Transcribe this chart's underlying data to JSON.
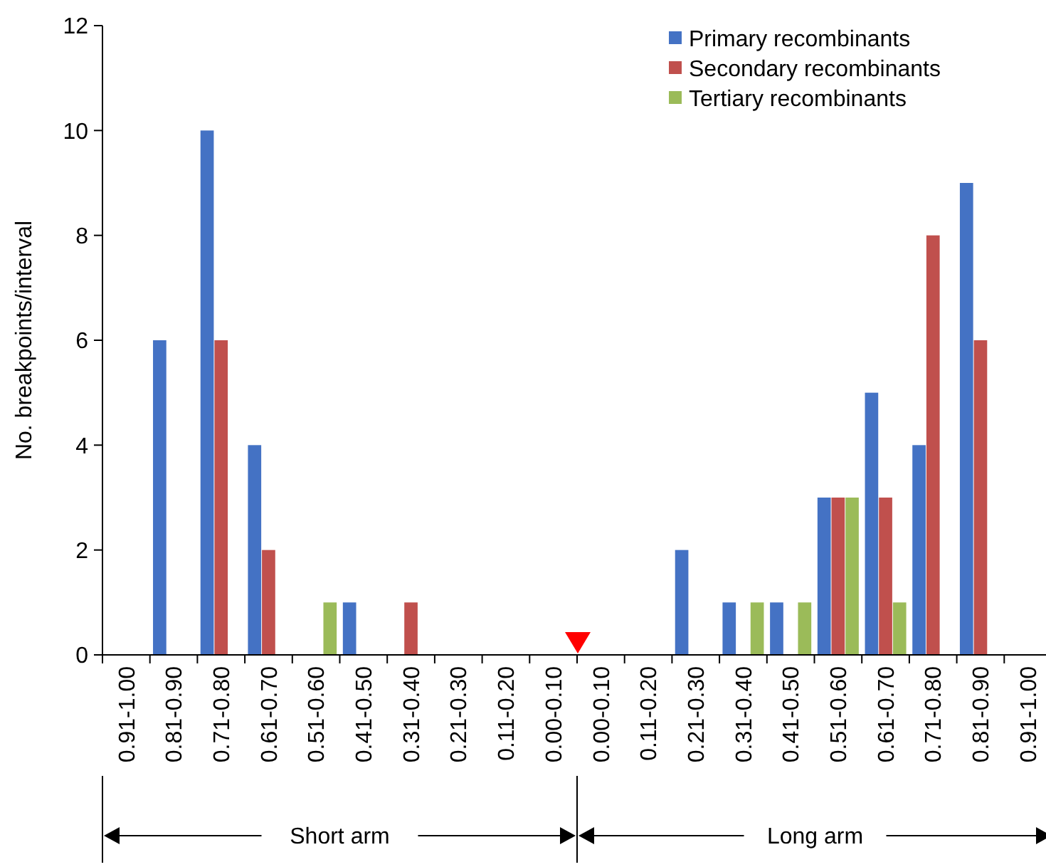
{
  "chart_data": {
    "type": "bar",
    "ylabel": "No. breakpoints/interval",
    "categories": [
      "0.91-1.00",
      "0.81-0.90",
      "0.71-0.80",
      "0.61-0.70",
      "0.51-0.60",
      "0.41-0.50",
      "0.31-0.40",
      "0.21-0.30",
      "0.11-0.20",
      "0.00-0.10",
      "0.00-0.10",
      "0.11-0.20",
      "0.21-0.30",
      "0.31-0.40",
      "0.41-0.50",
      "0.51-0.60",
      "0.61-0.70",
      "0.71-0.80",
      "0.81-0.90",
      "0.91-1.00"
    ],
    "series": [
      {
        "name": "Primary recombinants",
        "color": "#4472c4",
        "values": [
          0,
          6,
          10,
          4,
          0,
          1,
          0,
          0,
          0,
          0,
          0,
          0,
          2,
          1,
          1,
          3,
          5,
          4,
          9,
          0
        ]
      },
      {
        "name": "Secondary recombinants",
        "color": "#c0504d",
        "values": [
          0,
          0,
          6,
          2,
          0,
          0,
          1,
          0,
          0,
          0,
          0,
          0,
          0,
          0,
          0,
          3,
          3,
          8,
          6,
          0
        ]
      },
      {
        "name": "Tertiary recombinants",
        "color": "#9bbb59",
        "values": [
          0,
          0,
          0,
          0,
          1,
          0,
          0,
          0,
          0,
          0,
          0,
          0,
          0,
          1,
          1,
          3,
          1,
          0,
          0,
          0
        ]
      }
    ],
    "ylim": [
      0,
      12
    ],
    "yticks": [
      0,
      2,
      4,
      6,
      8,
      10,
      12
    ],
    "legend": "top right",
    "annotations": [
      "Short arm",
      "Long arm"
    ]
  }
}
